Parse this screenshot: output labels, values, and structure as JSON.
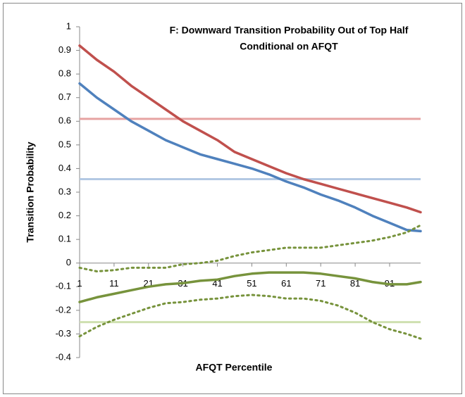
{
  "chart_data": {
    "type": "line",
    "title": [
      "F: Downward Transition Probability Out of Top Half",
      "Conditional on AFQT"
    ],
    "x_label": "AFQT Percentile",
    "y_label": "Transition Probability",
    "x": [
      1,
      6,
      11,
      16,
      21,
      26,
      31,
      36,
      41,
      46,
      51,
      56,
      61,
      66,
      71,
      76,
      81,
      86,
      91,
      96,
      100
    ],
    "xlim": [
      1,
      100
    ],
    "xticks": [
      1,
      11,
      21,
      31,
      41,
      51,
      61,
      71,
      81,
      91
    ],
    "ylim": [
      -0.4,
      1
    ],
    "yticks": [
      -0.4,
      -0.3,
      -0.2,
      -0.1,
      0,
      0.1,
      0.2,
      0.3,
      0.4,
      0.5,
      0.6,
      0.7,
      0.8,
      0.9,
      1
    ],
    "reference_lines": [
      {
        "value": 0.61,
        "color": "#e6a3a2"
      },
      {
        "value": 0.355,
        "color": "#b3c9e3"
      },
      {
        "value": -0.25,
        "color": "#cfe0b0"
      }
    ],
    "series": [
      {
        "color": "#c0504d",
        "style": "solid",
        "values": [
          0.92,
          0.86,
          0.81,
          0.75,
          0.7,
          0.65,
          0.6,
          0.56,
          0.52,
          0.47,
          0.44,
          0.41,
          0.38,
          0.355,
          0.335,
          0.315,
          0.295,
          0.275,
          0.255,
          0.235,
          0.215
        ]
      },
      {
        "color": "#4f81bd",
        "style": "solid",
        "values": [
          0.76,
          0.7,
          0.65,
          0.6,
          0.56,
          0.52,
          0.49,
          0.46,
          0.44,
          0.42,
          0.4,
          0.375,
          0.345,
          0.32,
          0.29,
          0.265,
          0.235,
          0.2,
          0.17,
          0.14,
          0.135
        ]
      },
      {
        "color": "#77933c",
        "style": "solid",
        "values": [
          -0.165,
          -0.145,
          -0.13,
          -0.115,
          -0.1,
          -0.09,
          -0.085,
          -0.075,
          -0.07,
          -0.055,
          -0.045,
          -0.04,
          -0.04,
          -0.04,
          -0.045,
          -0.055,
          -0.065,
          -0.08,
          -0.09,
          -0.09,
          -0.08
        ]
      },
      {
        "color": "#77933c",
        "style": "dotted",
        "values": [
          -0.02,
          -0.035,
          -0.03,
          -0.02,
          -0.02,
          -0.02,
          -0.005,
          0.0,
          0.01,
          0.03,
          0.045,
          0.055,
          0.065,
          0.065,
          0.065,
          0.075,
          0.085,
          0.095,
          0.11,
          0.13,
          0.16
        ]
      },
      {
        "color": "#77933c",
        "style": "dotted",
        "values": [
          -0.31,
          -0.27,
          -0.24,
          -0.215,
          -0.19,
          -0.17,
          -0.165,
          -0.155,
          -0.15,
          -0.14,
          -0.135,
          -0.14,
          -0.15,
          -0.15,
          -0.16,
          -0.18,
          -0.21,
          -0.25,
          -0.28,
          -0.3,
          -0.32
        ]
      }
    ]
  }
}
